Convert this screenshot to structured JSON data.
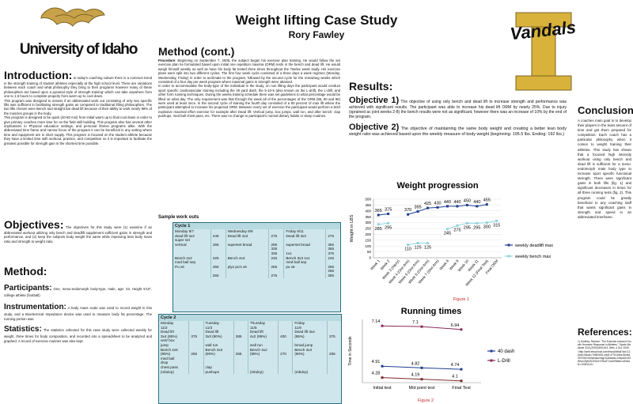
{
  "poster": {
    "title": "Weight lifting  Case Study",
    "author": "Rory Fawley",
    "university": "University of Idaho",
    "vandals": "Vandals"
  },
  "intro": {
    "heading": "Introduction:",
    "text": "In today's coaching culture there is a common trend in the strength training of student athletes especially at the high school level. There are variations between each coach and what philosophy they bring to their programs however many of these philosophies are based upon a pyramid style of strength training' which can take anywhere from one to 1.5 hours to complete properly from warm up to cool down.\nThis program was designed to assess if an abbreviated work out consisting of only two specific lifts was sufficient in facilitating strength gains as compared to traditional lifting philosophies. The two lifts chosen were Bench and straight bar dead lift because of their ability to work nearly 98% of the muscles groups in the body.\nThis program is designed to be quick (40-50 min) from initial warm up to final cool down in order to give primary coaches more time for on the field skill building. This program also has several other implications in Physical education settings, and personal fitness programs alike. With the abbreviated time frame and narrow focus of the program it can be beneficial in any setting where time and equipment are in short supply. This program is focused on the student athlete because they have a limited time with workout, practice, and competition so it is important to facilitate the greatest possible for strength gain in the shortest time possible."
  },
  "objectives": {
    "heading": "Objectives:",
    "text": "The objectives for this study were (1) examine if an abbreviated workout utilizing only bench and deadlift supplement sufficient gains in strength and performance, and (2) keep the subjects body weight the same while improving lean body mass ratio and strength to weight ratio."
  },
  "method": {
    "heading": "Method:",
    "participants_label": "Participants:",
    "participants": "One, meso-endomorph body-type, male, age: 23, Height 5'10\", college athlete (football)",
    "instrumentation_label": "Instrumentation:",
    "instrumentation": "A body mass scale was used to record weight in this study, and a Bioelectrical Impedance device was used to measure body fat percentage. The running portion was",
    "statistics_label": "Statistics:",
    "statistics": "The statistics collected for this case study were collected weekly for weight, three times for body composition, and recorded into a spreadsheet to be analyzed and graphed. A record of exercise routines was also kept."
  },
  "method_cont": {
    "heading": "Method (cont.)",
    "procedure_label": "Procedure",
    "procedure": "Beginning on September 7, 2009, the subject began his exercise plan training. He would follow the set exercise plan he formulated based upon initial one repetition maxima (ORM) tests in the bench and dead lift. He would weigh himself weekly as well as have his body fat tested three times throughout the Twelve week study. His exercise plans were split into two different cycles. The first four week cycle consisted of a three days a week regimen (Monday, Wednesday, Friday) in order to acclimate to the program, followed by the second cycle for the remaining weeks which consisted of a four day per week program where maximal gains in strength were attained.",
    "para2": "In order to accommodate the body-type of the individual in the study, on non lifting days the participant would conduct sport specific cardiovascular training including the 40 yard dash, the 5-10-5 (also known as the L-drill), the L-drill, and other form running techniques. During the weeks training schedule there was set guidelines to what percentage would be lifted on what day. The only requirement was that through the week all of the percentages of the ORM (85, 90 and 95) were used at least once. In the second cycle of training the fourth day consisted of a 90 percent of max lift where the participant attempted to increase his projected ORM. Between every set of exercise the participant would perform a brief explosive maximal effort exercise for example after Dead lift: Vertical jump, box jumps, wall run, and after bench: clap pushups, med ball chest pass, etc. There was no change to participant's normal dietary habits or sleep routines."
  },
  "workouts": {
    "heading": "Sample work outs",
    "cycle1": {
      "title": "Cycle 1",
      "rows": [
        [
          "Monday 9/7",
          "",
          "Wednesday 9/9",
          "",
          "Friday 9/11",
          ""
        ],
        [
          "dead lift 4x2",
          "245",
          "Dead lift 4x3",
          "275",
          "Dead lift 3x3",
          "275"
        ],
        [
          "super set",
          "",
          "",
          "",
          "",
          ""
        ],
        [
          "vertical",
          "265",
          "superset broad",
          "295",
          "superset broad",
          "355"
        ],
        [
          "",
          "",
          "",
          "335",
          "",
          "365"
        ],
        [
          "",
          "",
          "",
          "335",
          "1x1",
          "375"
        ],
        [
          "Bench 4x2",
          "225",
          "Bench 4x3",
          "245",
          "Bench 3x3 1x1",
          "245"
        ],
        [
          "med ball sep.",
          "",
          "",
          "",
          "med ball sep",
          ""
        ],
        [
          "Pu x6",
          "265",
          "plyo pu's x6",
          "265",
          "pu x6",
          "255"
        ],
        [
          "",
          "",
          "",
          "",
          "",
          "265"
        ],
        [
          "",
          "265",
          "",
          "275",
          "",
          "285"
        ]
      ]
    },
    "cycle2": {
      "title": "Cycle 2",
      "rows": [
        [
          "Monday",
          "",
          "Tuesday",
          "",
          "Thursday",
          "",
          "Friday",
          ""
        ],
        [
          "11/2",
          "",
          "11/3",
          "",
          "11/5",
          "",
          "11/6",
          ""
        ],
        [
          "Dead lift",
          "",
          "Dead lift",
          "",
          "Dead lift",
          "",
          "Dead lift 3x4",
          ""
        ],
        [
          "3x4 (85%)",
          "375",
          "3x3 (90%)",
          "385",
          "4x2 (95%)",
          "400",
          "(85%)",
          "375"
        ],
        [
          "vert/ box",
          "",
          "",
          "",
          "",
          "",
          "",
          ""
        ],
        [
          "jump",
          "",
          "wall run",
          "",
          "wall run",
          "",
          "broad jump",
          ""
        ],
        [
          "Bench 2x5",
          "",
          "Bench 3x3",
          "",
          "Bench 4x2",
          "",
          "Bench 3x3",
          ""
        ],
        [
          "(85%)",
          "265",
          "(90%)",
          "255",
          "(95%)",
          "270",
          "(90%)",
          "255"
        ],
        [
          "med ball",
          "",
          "",
          "",
          "",
          "",
          "",
          ""
        ],
        [
          "drop",
          "",
          "",
          "",
          "",
          "",
          "",
          ""
        ],
        [
          "chest pass",
          "",
          "clap",
          "",
          "",
          "",
          "",
          ""
        ],
        [
          "(mbdcp)",
          "",
          "pushups",
          "",
          "(mbdcp)",
          "",
          "(mbdcp)",
          ""
        ]
      ]
    }
  },
  "results": {
    "heading": "Results:",
    "obj1_label": "Objective 1)",
    "obj1": "The objective of using only bench and dead lift to increase strength and performance was achieved with significant results. The participant was able to increase his dead lift ORM by nearly 25%. Due to injury (sprained ac joint weeks 2-8) the bench results were not as significant, however there was an increase of 10% by the end of the program.",
    "obj2_label": "Objective 2)",
    "obj2": "The objective of maintaining the same body weight and creating a better lean body weight ratio was achieved based upon the weekly measure of body weight (beginning: 195.5 lbs. Ending: 192 lbs.)"
  },
  "chart_data": [
    {
      "type": "line",
      "title": "Weight progression",
      "ylabel": "Weight in LBS",
      "ylim": [
        0,
        500
      ],
      "yticks": [
        0,
        50,
        100,
        150,
        200,
        250,
        300,
        350,
        400,
        450,
        500
      ],
      "categories": [
        "Week 1",
        "Week 2",
        "Week 3 (Injury)",
        "Week 4 (One Arm)",
        "Week 5 (One Arm)",
        "Week 6 (One Arm)",
        "Week 7 (One Arm)",
        "Week 8",
        "Week 9",
        "Week 10",
        "Week 11",
        "Week 12 (Final Test)",
        "Final ORM"
      ],
      "series": [
        {
          "name": "weekly deadlift max",
          "color": "#1f3f8f",
          "values": [
            365,
            375,
            null,
            370,
            395,
            425,
            430,
            440,
            440,
            450,
            440,
            455,
            null
          ]
        },
        {
          "name": "weekly bench max",
          "color": "#8fd3dc",
          "values": [
            285,
            295,
            null,
            110,
            125,
            125,
            null,
            245,
            275,
            295,
            295,
            300,
            315
          ]
        }
      ],
      "figure_label": "Figure 1"
    },
    {
      "type": "line",
      "title": "Running times",
      "ylabel": "Time in Seconds",
      "ylim": [
        4.0,
        7.5
      ],
      "categories": [
        "Initial test",
        "Mid point test",
        "Final Test"
      ],
      "series": [
        {
          "name": "40 dash",
          "color": "#1f3f8f",
          "values": [
            4.91,
            4.82,
            4.74
          ]
        },
        {
          "name": "L-Drill",
          "color": "#8a2b5a",
          "values": [
            7.14,
            7.1,
            6.94
          ]
        },
        {
          "name": "",
          "color": "#7a2b2b",
          "values": [
            4.28,
            4.19,
            4.1
          ]
        }
      ],
      "point_labels": [
        [
          "4.91",
          "4.82",
          "4.74"
        ],
        [
          "7.14",
          "7.1",
          "6.94"
        ],
        [
          "4.28",
          "4.19",
          "4.1"
        ]
      ],
      "figure_label": "Figure 2"
    }
  ],
  "conclusion": {
    "heading": "Conclusion:",
    "text": "A coaches main goal is to develop their players in the least amount of time and get them prepared for competition. Each coach has a particular philosophy when it comes to weight training their athletes. This study has shown that a focused high intensity workout using only bench and dead lift is sufficient for a meso-endomorph male body type to increase sport specific functional strength. There were significant gains in both lifts (fig. 1) and significant decreases in times for all three running tests (fig. 2). This program could be greatly beneficial to any coaching staff that wants significant gains in strength and speed in an abbreviated timeframe."
  },
  "references": {
    "heading": "References:",
    "text": "1) Godfrey, Richard. \"The Exercise-Induced Growth Hormone Response in Athletes.\" Sports Medicine 33.8 (2003):599-613. Web. 4 Oct. 2009. <http://web.ebscohost.com/ehost/detail?vid=12&hid=5&sid=7b3b0e51-ccb8-4776-b6ea-5b4ea3f720b1%40sessionmgr11&bdata=JnNpdGU9ZWhvc3QtbGl2ZSZzY29wZT1zaXRl#db=s3h&AN=10051113>."
  }
}
